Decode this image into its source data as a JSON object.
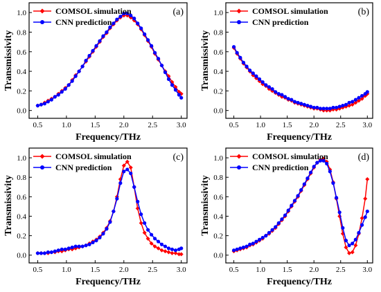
{
  "chart_data": [
    {
      "type": "line",
      "panel_label": "(a)",
      "xlabel": "Frequency/THz",
      "ylabel": "Transmissivity",
      "xlim": [
        0.35,
        3.1
      ],
      "ylim": [
        -0.08,
        1.1
      ],
      "xticks": [
        "0.5",
        "1.0",
        "1.5",
        "2.0",
        "2.5",
        "3.0"
      ],
      "yticks": [
        "0.0",
        "0.2",
        "0.4",
        "0.6",
        "0.8",
        "1.0"
      ],
      "legend": "top-left",
      "x": [
        0.5,
        0.56,
        0.62,
        0.68,
        0.74,
        0.8,
        0.86,
        0.92,
        0.98,
        1.04,
        1.1,
        1.16,
        1.22,
        1.28,
        1.34,
        1.4,
        1.46,
        1.52,
        1.58,
        1.64,
        1.7,
        1.76,
        1.82,
        1.88,
        1.94,
        2.0,
        2.06,
        2.12,
        2.18,
        2.24,
        2.3,
        2.36,
        2.42,
        2.48,
        2.54,
        2.6,
        2.66,
        2.72,
        2.78,
        2.84,
        2.9,
        2.96,
        3.0
      ],
      "series": [
        {
          "name": "COMSOL simulation",
          "color": "#ff0000",
          "marker": "diamond",
          "values": [
            0.05,
            0.06,
            0.08,
            0.1,
            0.12,
            0.14,
            0.17,
            0.2,
            0.23,
            0.26,
            0.31,
            0.36,
            0.4,
            0.45,
            0.5,
            0.55,
            0.6,
            0.65,
            0.7,
            0.75,
            0.79,
            0.84,
            0.88,
            0.92,
            0.95,
            0.97,
            0.97,
            0.95,
            0.92,
            0.88,
            0.83,
            0.77,
            0.71,
            0.65,
            0.58,
            0.52,
            0.46,
            0.4,
            0.35,
            0.29,
            0.24,
            0.19,
            0.17
          ]
        },
        {
          "name": "CNN prediction",
          "color": "#0000ff",
          "marker": "circle",
          "values": [
            0.05,
            0.06,
            0.07,
            0.09,
            0.11,
            0.14,
            0.16,
            0.19,
            0.22,
            0.26,
            0.3,
            0.35,
            0.4,
            0.45,
            0.51,
            0.56,
            0.61,
            0.66,
            0.71,
            0.76,
            0.8,
            0.85,
            0.89,
            0.93,
            0.96,
            0.99,
            0.99,
            0.97,
            0.94,
            0.89,
            0.84,
            0.78,
            0.72,
            0.66,
            0.59,
            0.53,
            0.46,
            0.39,
            0.32,
            0.26,
            0.21,
            0.16,
            0.13
          ]
        }
      ]
    },
    {
      "type": "line",
      "panel_label": "(b)",
      "xlabel": "Frequency/THz",
      "ylabel": "Transmissivity",
      "xlim": [
        0.35,
        3.1
      ],
      "ylim": [
        -0.08,
        1.1
      ],
      "xticks": [
        "0.5",
        "1.0",
        "1.5",
        "2.0",
        "2.5",
        "3.0"
      ],
      "yticks": [
        "0.0",
        "0.2",
        "0.4",
        "0.6",
        "0.8",
        "1.0"
      ],
      "legend": "top-right",
      "x": [
        0.5,
        0.56,
        0.62,
        0.68,
        0.74,
        0.8,
        0.86,
        0.92,
        0.98,
        1.04,
        1.1,
        1.16,
        1.22,
        1.28,
        1.34,
        1.4,
        1.46,
        1.52,
        1.58,
        1.64,
        1.7,
        1.76,
        1.82,
        1.88,
        1.94,
        2.0,
        2.06,
        2.12,
        2.18,
        2.24,
        2.3,
        2.36,
        2.42,
        2.48,
        2.54,
        2.6,
        2.66,
        2.72,
        2.78,
        2.84,
        2.9,
        2.96,
        3.0
      ],
      "series": [
        {
          "name": "COMSOL simulation",
          "color": "#ff0000",
          "marker": "diamond",
          "values": [
            0.64,
            0.58,
            0.53,
            0.48,
            0.44,
            0.4,
            0.36,
            0.33,
            0.3,
            0.27,
            0.25,
            0.22,
            0.2,
            0.18,
            0.16,
            0.14,
            0.13,
            0.11,
            0.1,
            0.08,
            0.07,
            0.06,
            0.05,
            0.04,
            0.03,
            0.02,
            0.02,
            0.01,
            0.0,
            0.0,
            0.0,
            0.01,
            0.01,
            0.02,
            0.03,
            0.04,
            0.05,
            0.06,
            0.08,
            0.1,
            0.12,
            0.15,
            0.17
          ]
        },
        {
          "name": "CNN prediction",
          "color": "#0000ff",
          "marker": "circle",
          "values": [
            0.65,
            0.59,
            0.54,
            0.49,
            0.45,
            0.41,
            0.38,
            0.35,
            0.32,
            0.29,
            0.26,
            0.24,
            0.22,
            0.19,
            0.17,
            0.16,
            0.14,
            0.12,
            0.11,
            0.09,
            0.08,
            0.07,
            0.06,
            0.05,
            0.04,
            0.03,
            0.03,
            0.02,
            0.02,
            0.02,
            0.02,
            0.03,
            0.03,
            0.04,
            0.05,
            0.06,
            0.08,
            0.09,
            0.11,
            0.13,
            0.15,
            0.17,
            0.19
          ]
        }
      ]
    },
    {
      "type": "line",
      "panel_label": "(c)",
      "xlabel": "Frequency/THz",
      "ylabel": "Transmissivity",
      "xlim": [
        0.35,
        3.1
      ],
      "ylim": [
        -0.08,
        1.1
      ],
      "xticks": [
        "0.5",
        "1.0",
        "1.5",
        "2.0",
        "2.5",
        "3.0"
      ],
      "yticks": [
        "0.0",
        "0.2",
        "0.4",
        "0.6",
        "0.8",
        "1.0"
      ],
      "legend": "top-left",
      "x": [
        0.5,
        0.56,
        0.62,
        0.68,
        0.74,
        0.8,
        0.86,
        0.92,
        0.98,
        1.04,
        1.1,
        1.16,
        1.22,
        1.28,
        1.34,
        1.4,
        1.46,
        1.52,
        1.58,
        1.64,
        1.7,
        1.76,
        1.82,
        1.88,
        1.94,
        2.0,
        2.06,
        2.12,
        2.18,
        2.24,
        2.3,
        2.36,
        2.42,
        2.48,
        2.54,
        2.6,
        2.66,
        2.72,
        2.78,
        2.84,
        2.9,
        2.96,
        3.0
      ],
      "series": [
        {
          "name": "COMSOL simulation",
          "color": "#ff0000",
          "marker": "diamond",
          "values": [
            0.02,
            0.02,
            0.02,
            0.02,
            0.03,
            0.03,
            0.04,
            0.04,
            0.05,
            0.06,
            0.06,
            0.07,
            0.08,
            0.09,
            0.1,
            0.12,
            0.14,
            0.16,
            0.19,
            0.23,
            0.28,
            0.35,
            0.45,
            0.6,
            0.78,
            0.92,
            0.96,
            0.9,
            0.7,
            0.48,
            0.33,
            0.23,
            0.17,
            0.12,
            0.09,
            0.07,
            0.05,
            0.04,
            0.03,
            0.02,
            0.02,
            0.01,
            0.01
          ]
        },
        {
          "name": "CNN prediction",
          "color": "#0000ff",
          "marker": "circle",
          "values": [
            0.02,
            0.02,
            0.02,
            0.03,
            0.03,
            0.04,
            0.05,
            0.06,
            0.06,
            0.07,
            0.08,
            0.09,
            0.09,
            0.09,
            0.1,
            0.11,
            0.13,
            0.15,
            0.18,
            0.22,
            0.27,
            0.34,
            0.45,
            0.58,
            0.74,
            0.86,
            0.88,
            0.84,
            0.7,
            0.55,
            0.42,
            0.33,
            0.26,
            0.21,
            0.17,
            0.14,
            0.11,
            0.09,
            0.07,
            0.06,
            0.05,
            0.06,
            0.07
          ]
        }
      ]
    },
    {
      "type": "line",
      "panel_label": "(d)",
      "xlabel": "Frequency/THz",
      "ylabel": "Transmissivity",
      "xlim": [
        0.35,
        3.1
      ],
      "ylim": [
        -0.08,
        1.1
      ],
      "xticks": [
        "0.5",
        "1.0",
        "1.5",
        "2.0",
        "2.5",
        "3.0"
      ],
      "yticks": [
        "0.0",
        "0.2",
        "0.4",
        "0.6",
        "0.8",
        "1.0"
      ],
      "legend": "top-left",
      "x": [
        0.5,
        0.56,
        0.62,
        0.68,
        0.74,
        0.8,
        0.86,
        0.92,
        0.98,
        1.04,
        1.1,
        1.16,
        1.22,
        1.28,
        1.34,
        1.4,
        1.46,
        1.52,
        1.58,
        1.64,
        1.7,
        1.76,
        1.82,
        1.88,
        1.94,
        2.0,
        2.06,
        2.12,
        2.18,
        2.24,
        2.3,
        2.36,
        2.42,
        2.48,
        2.54,
        2.6,
        2.66,
        2.72,
        2.78,
        2.84,
        2.9,
        2.96,
        3.0
      ],
      "series": [
        {
          "name": "COMSOL simulation",
          "color": "#ff0000",
          "marker": "diamond",
          "values": [
            0.04,
            0.05,
            0.06,
            0.07,
            0.08,
            0.1,
            0.11,
            0.13,
            0.15,
            0.17,
            0.2,
            0.22,
            0.25,
            0.28,
            0.32,
            0.36,
            0.4,
            0.45,
            0.5,
            0.55,
            0.6,
            0.66,
            0.72,
            0.78,
            0.84,
            0.9,
            0.95,
            0.98,
            0.99,
            0.96,
            0.88,
            0.75,
            0.58,
            0.4,
            0.22,
            0.08,
            0.02,
            0.03,
            0.1,
            0.22,
            0.38,
            0.58,
            0.78
          ]
        },
        {
          "name": "CNN prediction",
          "color": "#0000ff",
          "marker": "circle",
          "values": [
            0.05,
            0.06,
            0.07,
            0.08,
            0.09,
            0.11,
            0.12,
            0.14,
            0.16,
            0.18,
            0.2,
            0.23,
            0.26,
            0.29,
            0.33,
            0.37,
            0.41,
            0.46,
            0.51,
            0.56,
            0.61,
            0.67,
            0.73,
            0.79,
            0.85,
            0.91,
            0.95,
            0.97,
            0.97,
            0.94,
            0.86,
            0.74,
            0.59,
            0.44,
            0.28,
            0.15,
            0.1,
            0.12,
            0.16,
            0.23,
            0.31,
            0.39,
            0.45
          ]
        }
      ]
    }
  ]
}
